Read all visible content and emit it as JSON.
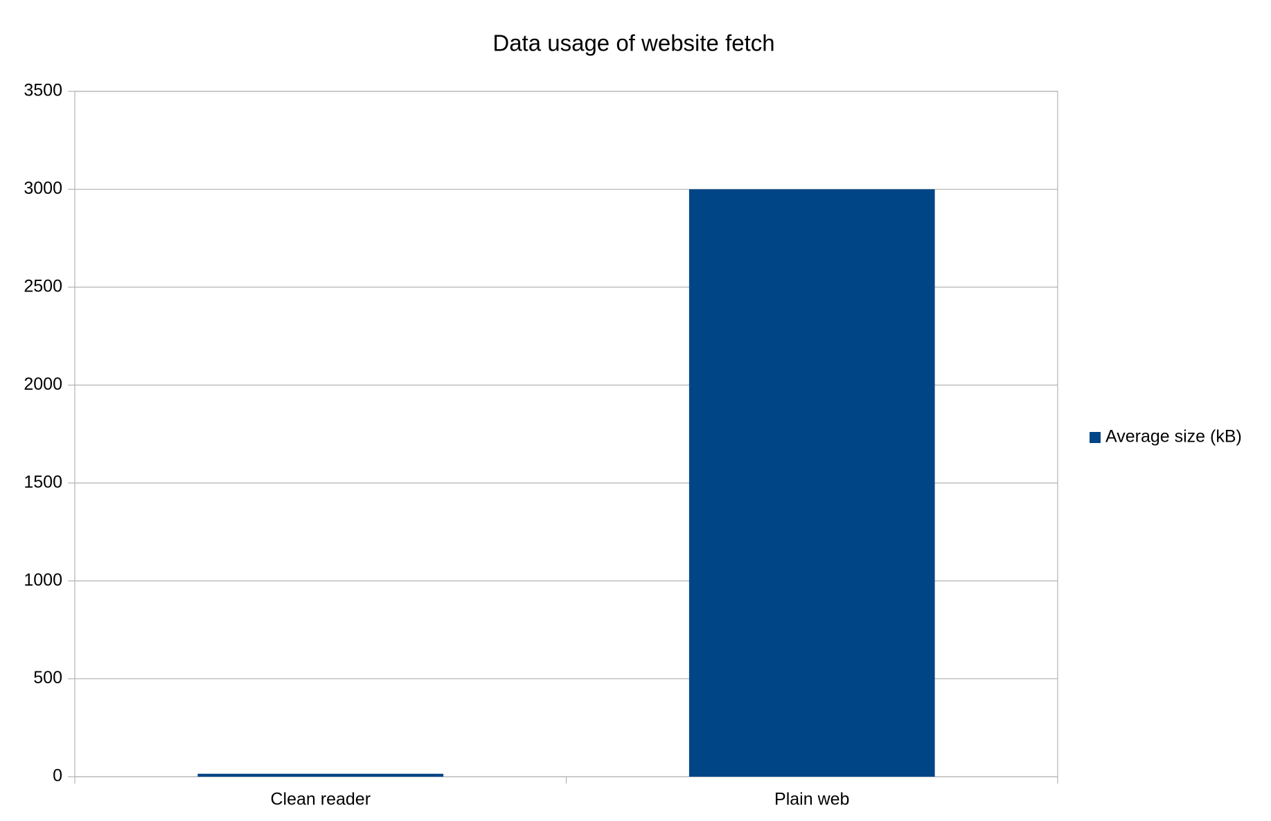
{
  "chart_data": {
    "type": "bar",
    "title": "Data usage of website fetch",
    "categories": [
      "Clean reader",
      "Plain web"
    ],
    "series": [
      {
        "name": "Average size (kB)",
        "color": "#004586",
        "values": [
          15,
          3000
        ]
      }
    ],
    "ylim": [
      0,
      3500
    ],
    "yticks": [
      0,
      500,
      1000,
      1500,
      2000,
      2500,
      3000,
      3500
    ],
    "grid": true,
    "legend": "right"
  }
}
